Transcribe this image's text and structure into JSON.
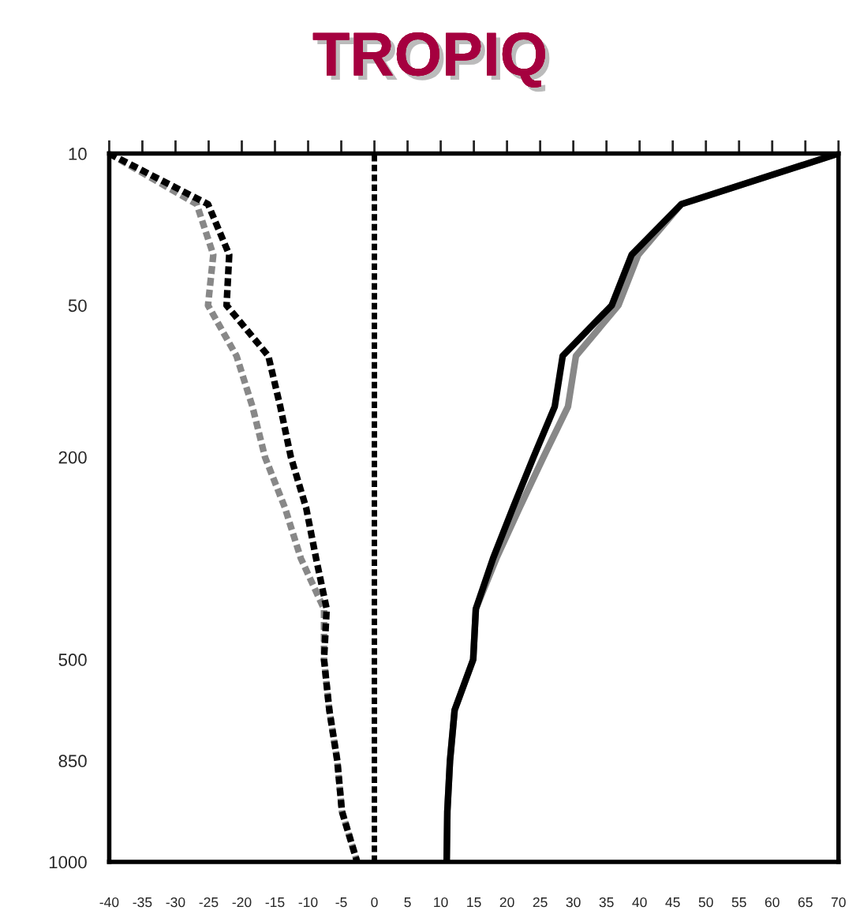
{
  "chart_data": {
    "type": "line",
    "title": "TROPIQ",
    "orientation": "horizontal",
    "categories": [
      "10",
      null,
      null,
      "50",
      null,
      null,
      "200",
      null,
      null,
      null,
      "500",
      null,
      "850",
      null,
      "1000"
    ],
    "xlim": [
      -40,
      70
    ],
    "xticks": [
      -40,
      -35,
      -30,
      -25,
      -20,
      -15,
      -10,
      -5,
      0,
      5,
      10,
      15,
      20,
      25,
      30,
      35,
      40,
      45,
      50,
      55,
      60,
      65,
      70
    ],
    "series": [
      {
        "color": "#888888",
        "line_style": "dashed",
        "values": [
          -40,
          -26.8,
          -24.3,
          -25.1,
          -20.8,
          -18.4,
          -16.5,
          -13.5,
          -11.1,
          -7.6,
          -7.6,
          -6.8,
          -5.6,
          -4.9,
          -2.6
        ]
      },
      {
        "color": "#000000",
        "line_style": "dashed",
        "values": [
          -40,
          -25.1,
          -21.9,
          -22.3,
          -16.0,
          -14.2,
          -12.6,
          -10.3,
          -8.8,
          -7.2,
          -7.6,
          -6.8,
          -5.6,
          -4.9,
          -2.6
        ]
      },
      {
        "color": "#888888",
        "line_style": "solid",
        "values": [
          70,
          46.3,
          39.8,
          36.8,
          30.4,
          29.2,
          25.5,
          21.9,
          18.4,
          15.3,
          14.9,
          12.1,
          11.4,
          11.0,
          10.9
        ]
      },
      {
        "color": "#000000",
        "line_style": "solid",
        "values": [
          70,
          46.3,
          38.8,
          35.8,
          28.4,
          27.2,
          24.0,
          20.9,
          17.9,
          15.3,
          14.9,
          12.1,
          11.4,
          11.0,
          10.9
        ]
      }
    ],
    "ref_lines": [
      {
        "axis": "x",
        "value": 0,
        "color": "#000000",
        "line_style": "dashed"
      }
    ],
    "grid": false,
    "legend": false
  }
}
